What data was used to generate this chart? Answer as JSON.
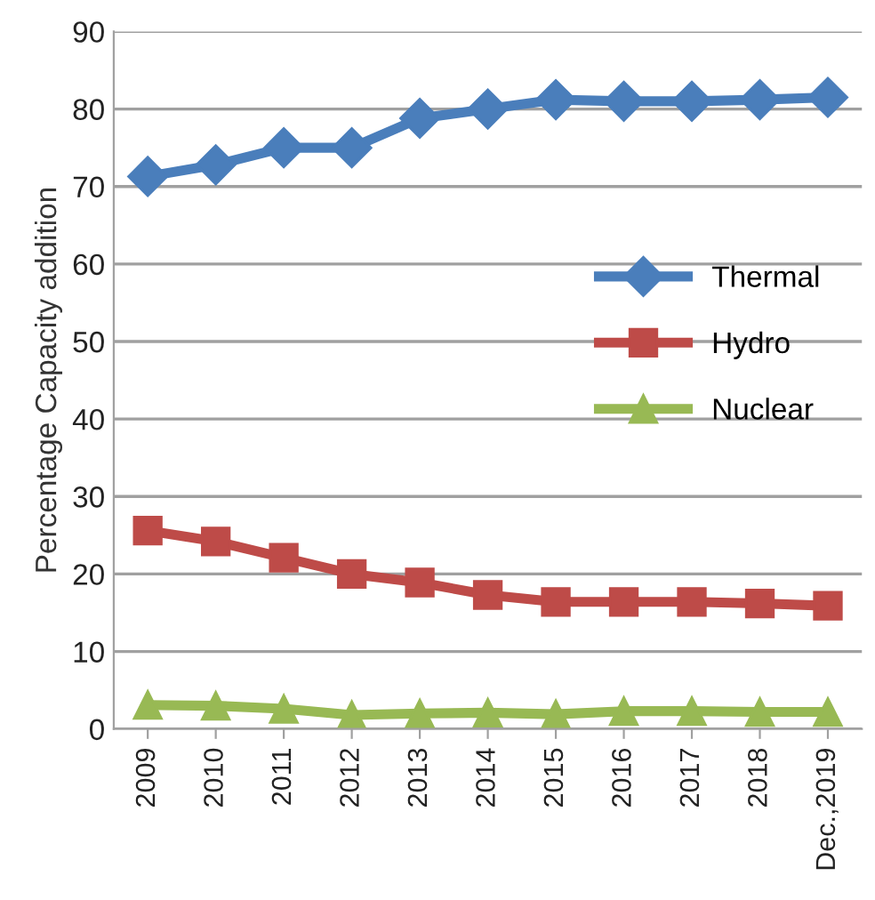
{
  "chart_data": {
    "type": "line",
    "ylabel": "Percentage Capacity addition",
    "categories": [
      "2009",
      "2010",
      "2011",
      "2012",
      "2013",
      "2014",
      "2015",
      "2016",
      "2017",
      "2018",
      "Dec.,2019"
    ],
    "series": [
      {
        "name": "Thermal",
        "color": "#4a7ebb",
        "marker": "diamond",
        "values": [
          71.3,
          72.8,
          75,
          75,
          78.8,
          80,
          81.2,
          81,
          81,
          81.2,
          81.5
        ]
      },
      {
        "name": "Hydro",
        "color": "#be4b48",
        "marker": "square",
        "values": [
          25.6,
          24.2,
          22.1,
          20,
          18.9,
          17.3,
          16.4,
          16.4,
          16.4,
          16.2,
          15.9
        ]
      },
      {
        "name": "Nuclear",
        "color": "#98b954",
        "marker": "triangle",
        "values": [
          3.1,
          3.0,
          2.6,
          1.8,
          2.0,
          2.1,
          1.9,
          2.3,
          2.3,
          2.2,
          2.2
        ]
      }
    ],
    "ylim": [
      0,
      90
    ],
    "yticks": [
      0,
      10,
      20,
      30,
      40,
      50,
      60,
      70,
      80,
      90
    ],
    "grid": "y",
    "legend": "right"
  }
}
